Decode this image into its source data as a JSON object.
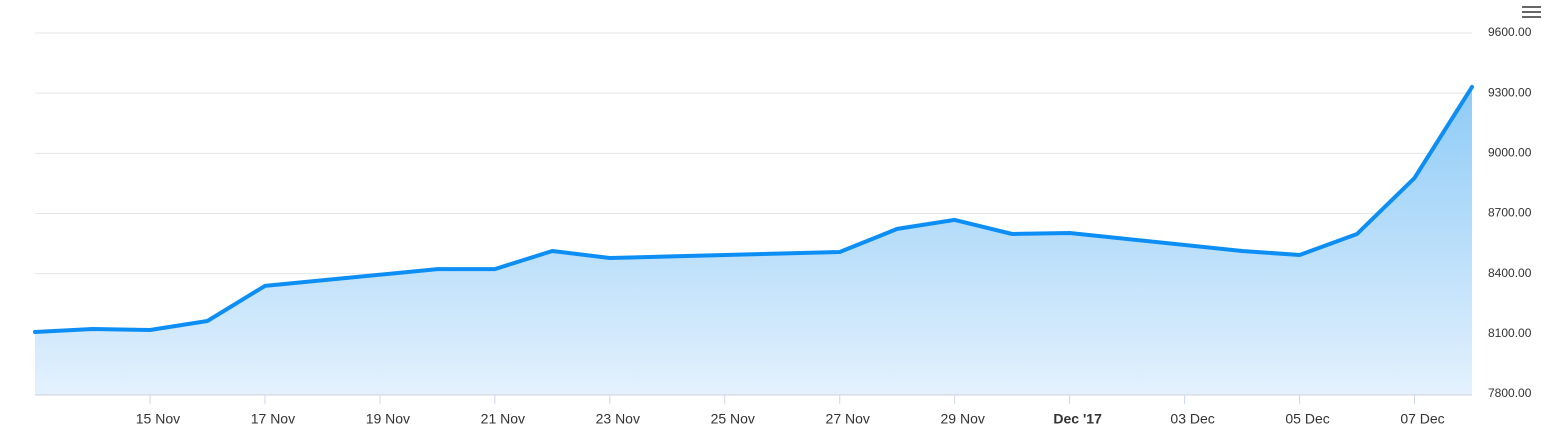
{
  "chart_data": {
    "type": "area",
    "x": [
      "2017-11-13",
      "2017-11-14",
      "2017-11-15",
      "2017-11-16",
      "2017-11-17",
      "2017-11-20",
      "2017-11-21",
      "2017-11-22",
      "2017-11-23",
      "2017-11-27",
      "2017-11-28",
      "2017-11-29",
      "2017-11-30",
      "2017-12-01",
      "2017-12-04",
      "2017-12-05",
      "2017-12-06",
      "2017-12-07",
      "2017-12-08"
    ],
    "values": [
      8109,
      8124,
      8119,
      8164,
      8339,
      8423,
      8423,
      8513,
      8478,
      8508,
      8623,
      8668,
      8598,
      8603,
      8513,
      8493,
      8598,
      8877,
      9331
    ],
    "color": "#0d8ef5",
    "xlim": [
      "2017-11-13",
      "2017-12-08"
    ],
    "xticks": [
      {
        "value": "2017-11-15",
        "label": "15 Nov"
      },
      {
        "value": "2017-11-17",
        "label": "17 Nov"
      },
      {
        "value": "2017-11-19",
        "label": "19 Nov"
      },
      {
        "value": "2017-11-21",
        "label": "21 Nov"
      },
      {
        "value": "2017-11-23",
        "label": "23 Nov"
      },
      {
        "value": "2017-11-25",
        "label": "25 Nov"
      },
      {
        "value": "2017-11-27",
        "label": "27 Nov"
      },
      {
        "value": "2017-11-29",
        "label": "29 Nov"
      },
      {
        "value": "2017-12-01",
        "label": "Dec '17"
      },
      {
        "value": "2017-12-03",
        "label": "03 Dec"
      },
      {
        "value": "2017-12-05",
        "label": "05 Dec"
      },
      {
        "value": "2017-12-07",
        "label": "07 Dec"
      }
    ],
    "ylim": [
      7800,
      9600
    ],
    "yticks": [
      {
        "value": 7800,
        "label": "7800.00"
      },
      {
        "value": 8100,
        "label": "8100.00"
      },
      {
        "value": 8400,
        "label": "8400.00"
      },
      {
        "value": 8700,
        "label": "8700.00"
      },
      {
        "value": 9000,
        "label": "9000.00"
      },
      {
        "value": 9300,
        "label": "9300.00"
      },
      {
        "value": 9600,
        "label": "9600.00"
      }
    ],
    "grid": true
  }
}
